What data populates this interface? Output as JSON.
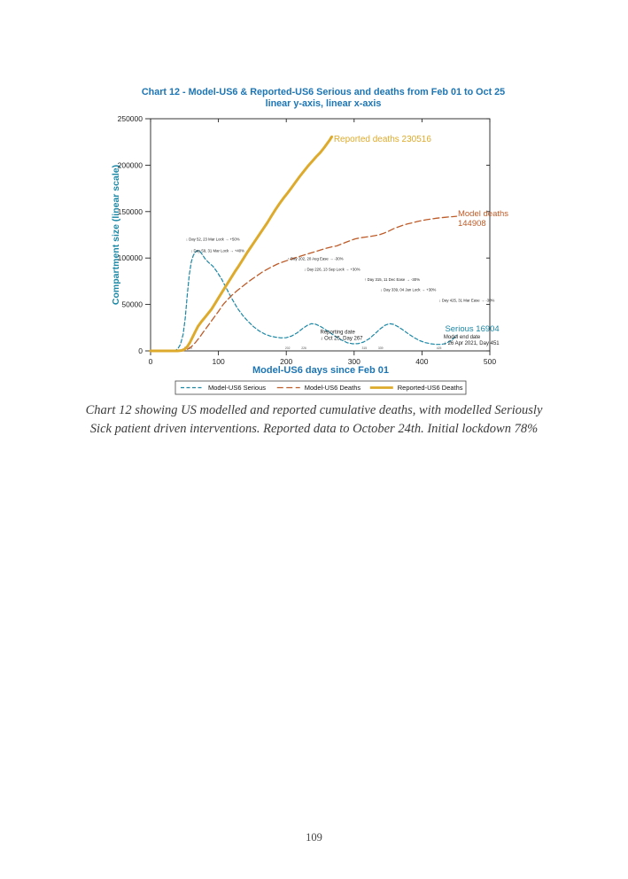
{
  "page": {
    "number": "109"
  },
  "chart": {
    "title_line1": "Chart 12 - Model-US6 & Reported-US6 Serious and deaths from Feb 01 to Oct 25",
    "title_line2": "linear y-axis, linear x-axis",
    "x_label": "Model-US6 days since Feb 01",
    "y_label": "Compartment size (linear scale)",
    "title_color": "#1C75B4",
    "y_label_color": "#1A87A5"
  },
  "caption": {
    "text": "Chart 12 showing US modelled and reported cumulative deaths, with modelled Seriously Sick patient driven interventions. Reported data to October 24th. Initial lockdown 78%"
  },
  "chart_data": {
    "type": "line",
    "title": "Chart 12 - Model-US6 & Reported-US6 Serious and deaths from Feb 01 to Oct 25",
    "subtitle": "linear y-axis, linear x-axis",
    "xlabel": "Model-US6 days since Feb 01",
    "ylabel": "Compartment size (linear scale)",
    "xlim": [
      0,
      500
    ],
    "ylim": [
      0,
      250000
    ],
    "grid": false,
    "legend_position": "bottom",
    "x_ticks": [
      "0",
      "100",
      "200",
      "300",
      "400",
      "500"
    ],
    "y_ticks": [
      "0",
      "50000",
      "100000",
      "150000",
      "200000",
      "250000"
    ],
    "intervention_day_ticks": [
      "52",
      "59",
      "202",
      "226",
      "315",
      "339",
      "425"
    ],
    "series": [
      {
        "name": "Model-US6 Serious",
        "color": "#1A87A5",
        "dash": "4,2.5",
        "width": 1.2,
        "points": [
          [
            0,
            0
          ],
          [
            30,
            0
          ],
          [
            36,
            500
          ],
          [
            40,
            2000
          ],
          [
            44,
            7000
          ],
          [
            48,
            18000
          ],
          [
            51,
            35000
          ],
          [
            54,
            60000
          ],
          [
            57,
            82000
          ],
          [
            60,
            96000
          ],
          [
            63,
            103000
          ],
          [
            66,
            106500
          ],
          [
            69,
            107800
          ],
          [
            72,
            107900
          ],
          [
            76,
            104000
          ],
          [
            80,
            99500
          ],
          [
            85,
            95500
          ],
          [
            92,
            91000
          ],
          [
            98,
            85000
          ],
          [
            105,
            77000
          ],
          [
            112,
            67000
          ],
          [
            120,
            56000
          ],
          [
            128,
            46000
          ],
          [
            136,
            38000
          ],
          [
            144,
            31500
          ],
          [
            152,
            26000
          ],
          [
            160,
            21500
          ],
          [
            168,
            18200
          ],
          [
            176,
            16000
          ],
          [
            184,
            14800
          ],
          [
            192,
            14000
          ],
          [
            200,
            14200
          ],
          [
            208,
            16000
          ],
          [
            216,
            19500
          ],
          [
            224,
            24000
          ],
          [
            231,
            27500
          ],
          [
            237,
            29300
          ],
          [
            243,
            28800
          ],
          [
            250,
            26500
          ],
          [
            258,
            22800
          ],
          [
            266,
            18800
          ],
          [
            274,
            15000
          ],
          [
            282,
            11500
          ],
          [
            290,
            8800
          ],
          [
            298,
            7600
          ],
          [
            306,
            7800
          ],
          [
            314,
            9500
          ],
          [
            322,
            13000
          ],
          [
            330,
            18000
          ],
          [
            338,
            23500
          ],
          [
            346,
            27800
          ],
          [
            352,
            29300
          ],
          [
            358,
            28600
          ],
          [
            365,
            26000
          ],
          [
            373,
            22000
          ],
          [
            381,
            17800
          ],
          [
            389,
            14000
          ],
          [
            397,
            11000
          ],
          [
            405,
            8900
          ],
          [
            413,
            7600
          ],
          [
            421,
            7000
          ],
          [
            428,
            7000
          ],
          [
            434,
            7800
          ],
          [
            440,
            9800
          ],
          [
            445,
            12500
          ],
          [
            449,
            15200
          ],
          [
            451,
            16904
          ]
        ]
      },
      {
        "name": "Model-US6 Deaths",
        "color": "#BD5B28",
        "dash": "7,3.5",
        "width": 1.3,
        "points": [
          [
            0,
            0
          ],
          [
            48,
            0
          ],
          [
            54,
            1500
          ],
          [
            60,
            4500
          ],
          [
            66,
            9000
          ],
          [
            72,
            14500
          ],
          [
            78,
            20500
          ],
          [
            85,
            27500
          ],
          [
            92,
            34500
          ],
          [
            100,
            42500
          ],
          [
            107,
            50000
          ],
          [
            114,
            55500
          ],
          [
            120,
            60000
          ],
          [
            127,
            64500
          ],
          [
            133,
            68000
          ],
          [
            140,
            72000
          ],
          [
            148,
            76500
          ],
          [
            156,
            80500
          ],
          [
            164,
            84500
          ],
          [
            172,
            88000
          ],
          [
            180,
            91000
          ],
          [
            187,
            93500
          ],
          [
            195,
            95800
          ],
          [
            203,
            97800
          ],
          [
            211,
            99800
          ],
          [
            219,
            101600
          ],
          [
            227,
            103400
          ],
          [
            235,
            105200
          ],
          [
            243,
            107000
          ],
          [
            251,
            108800
          ],
          [
            259,
            110600
          ],
          [
            267,
            112000
          ],
          [
            274,
            113000
          ],
          [
            281,
            115000
          ],
          [
            288,
            117000
          ],
          [
            295,
            119000
          ],
          [
            302,
            120700
          ],
          [
            309,
            121800
          ],
          [
            316,
            122500
          ],
          [
            323,
            123200
          ],
          [
            330,
            124000
          ],
          [
            337,
            125000
          ],
          [
            344,
            126800
          ],
          [
            351,
            129000
          ],
          [
            358,
            131500
          ],
          [
            365,
            133500
          ],
          [
            372,
            135300
          ],
          [
            379,
            136800
          ],
          [
            386,
            138000
          ],
          [
            393,
            139300
          ],
          [
            400,
            140400
          ],
          [
            407,
            141300
          ],
          [
            414,
            142100
          ],
          [
            421,
            142800
          ],
          [
            428,
            143400
          ],
          [
            435,
            143900
          ],
          [
            442,
            144400
          ],
          [
            451,
            144908
          ]
        ]
      },
      {
        "name": "Reported-US6 Deaths",
        "color": "#DDAA2B",
        "dash": null,
        "width": 3,
        "points": [
          [
            0,
            0
          ],
          [
            40,
            0
          ],
          [
            46,
            500
          ],
          [
            50,
            1800
          ],
          [
            54,
            4500
          ],
          [
            58,
            9000
          ],
          [
            62,
            15000
          ],
          [
            66,
            21000
          ],
          [
            70,
            26500
          ],
          [
            75,
            31500
          ],
          [
            80,
            36000
          ],
          [
            85,
            40500
          ],
          [
            90,
            45000
          ],
          [
            95,
            51000
          ],
          [
            100,
            57000
          ],
          [
            106,
            64000
          ],
          [
            112,
            71000
          ],
          [
            118,
            78000
          ],
          [
            124,
            85000
          ],
          [
            130,
            91500
          ],
          [
            136,
            98500
          ],
          [
            142,
            105500
          ],
          [
            148,
            112000
          ],
          [
            154,
            118500
          ],
          [
            160,
            125000
          ],
          [
            166,
            131500
          ],
          [
            172,
            138000
          ],
          [
            178,
            145000
          ],
          [
            184,
            152000
          ],
          [
            190,
            158500
          ],
          [
            196,
            164500
          ],
          [
            202,
            170000
          ],
          [
            208,
            176000
          ],
          [
            214,
            182000
          ],
          [
            220,
            188000
          ],
          [
            226,
            193500
          ],
          [
            232,
            199000
          ],
          [
            238,
            204000
          ],
          [
            244,
            209000
          ],
          [
            250,
            213500
          ],
          [
            256,
            219000
          ],
          [
            261,
            224000
          ],
          [
            264,
            227000
          ],
          [
            267,
            230516
          ]
        ]
      }
    ],
    "end_values": {
      "reported_deaths": 230516,
      "model_deaths": 144908,
      "serious": 16904
    },
    "annotations": [
      {
        "lines": [
          "Reported deaths 230516"
        ],
        "day": 270,
        "value": 225000,
        "color": "#DDAA2B",
        "size": 10,
        "weight": "normal"
      },
      {
        "lines": [
          "Model deaths",
          "144908"
        ],
        "day": 453,
        "value": 145000,
        "color": "#BD5B28",
        "size": 9.5,
        "weight": "normal"
      },
      {
        "lines": [
          "Serious 16904"
        ],
        "day": 434,
        "value": 21000,
        "color": "#1A87A5",
        "size": 9.5,
        "weight": "normal"
      },
      {
        "lines": [
          "Model end date",
          "↓ 26 Apr 2021, Day 451"
        ],
        "day": 432,
        "value": 13500,
        "color": "#222222",
        "size": 6,
        "weight": "normal"
      },
      {
        "lines": [
          "Reporting date",
          "↓ Oct 25, Day 267"
        ],
        "day": 250,
        "value": 18500,
        "color": "#222222",
        "size": 6,
        "weight": "normal"
      },
      {
        "lines": [
          "↓ Day 52, 23 Mar Lock → +50%"
        ],
        "day": 52,
        "value": 119000,
        "color": "#222222",
        "size": 4.3,
        "weight": "normal"
      },
      {
        "lines": [
          "↓ Day 59, 31 Mar Lock → +40%"
        ],
        "day": 59,
        "value": 106500,
        "color": "#222222",
        "size": 4.3,
        "weight": "normal"
      },
      {
        "lines": [
          "↑ Day 202, 20 Aug Ease → -30%"
        ],
        "day": 202,
        "value": 98000,
        "color": "#222222",
        "size": 4.3,
        "weight": "normal"
      },
      {
        "lines": [
          "↓ Day 226, 13 Sep Lock → +30%"
        ],
        "day": 226,
        "value": 86500,
        "color": "#222222",
        "size": 4.3,
        "weight": "normal"
      },
      {
        "lines": [
          "↑ Day 315, 11 Dec Ease → -30%"
        ],
        "day": 315,
        "value": 75500,
        "color": "#222222",
        "size": 4.3,
        "weight": "normal"
      },
      {
        "lines": [
          "↓ Day 339, 04 Jan Lock → +30%"
        ],
        "day": 339,
        "value": 64500,
        "color": "#222222",
        "size": 4.3,
        "weight": "normal"
      },
      {
        "lines": [
          "↓ Day 425, 31 Mar Ease → -30%"
        ],
        "day": 425,
        "value": 53000,
        "color": "#222222",
        "size": 4.3,
        "weight": "normal"
      }
    ],
    "legend": {
      "items": [
        {
          "label": "Model-US6 Serious",
          "color": "#1A87A5",
          "dash": "4,2.5",
          "width": 1.2
        },
        {
          "label": "Model-US6 Deaths",
          "color": "#BD5B28",
          "dash": "7,3.5",
          "width": 1.3
        },
        {
          "label": "Reported-US6 Deaths",
          "color": "#DDAA2B",
          "dash": null,
          "width": 2.8
        }
      ]
    }
  }
}
